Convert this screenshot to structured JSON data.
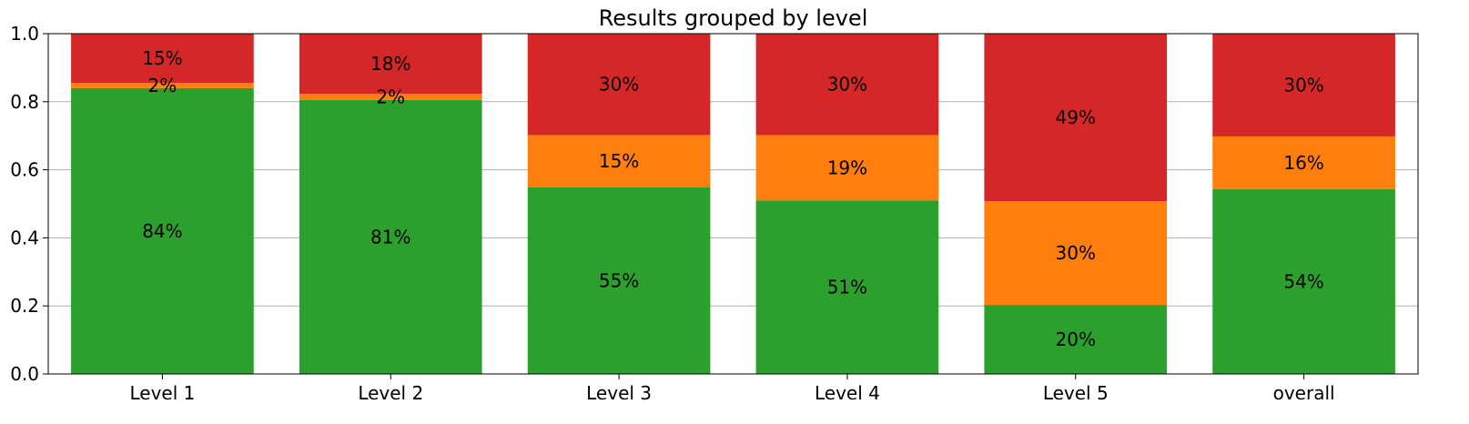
{
  "chart_data": {
    "type": "bar",
    "stacked": true,
    "title": "Results grouped by level",
    "xlabel": "",
    "ylabel": "",
    "ylim": [
      0,
      1.0
    ],
    "yticks": [
      "0.0",
      "0.2",
      "0.4",
      "0.6",
      "0.8",
      "1.0"
    ],
    "grid": "horizontal",
    "categories": [
      "Level 1",
      "Level 2",
      "Level 3",
      "Level 4",
      "Level 5",
      "overall"
    ],
    "series": [
      {
        "color": "#2ca02c",
        "values": [
          0.84,
          0.805,
          0.549,
          0.51,
          0.203,
          0.543
        ],
        "labels": [
          "84%",
          "81%",
          "55%",
          "51%",
          "20%",
          "54%"
        ]
      },
      {
        "color": "#ff7f0e",
        "values": [
          0.015,
          0.018,
          0.153,
          0.192,
          0.305,
          0.155
        ],
        "labels": [
          "2%",
          "2%",
          "15%",
          "19%",
          "30%",
          "16%"
        ]
      },
      {
        "color": "#d62728",
        "values": [
          0.145,
          0.177,
          0.298,
          0.298,
          0.492,
          0.302
        ],
        "labels": [
          "15%",
          "18%",
          "30%",
          "30%",
          "49%",
          "30%"
        ]
      }
    ]
  }
}
